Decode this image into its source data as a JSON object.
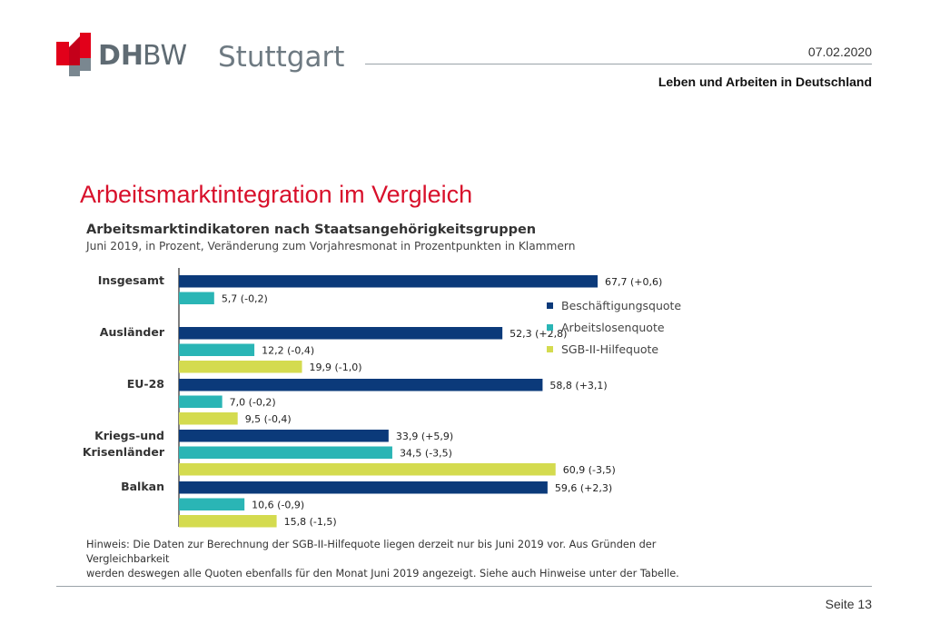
{
  "header": {
    "logo_dh": "DH",
    "logo_bw": "BW",
    "logo_city": "Stuttgart",
    "date": "07.02.2020",
    "subtitle": "Leben und Arbeiten in Deutschland"
  },
  "slide": {
    "title": "Arbeitsmarktintegration im Vergleich"
  },
  "chart_data": {
    "type": "bar",
    "orientation": "horizontal",
    "title": "Arbeitsmarktindikatoren nach Staatsangehörigkeitsgruppen",
    "subtitle": "Juni 2019, in Prozent, Veränderung zum Vorjahresmonat in Prozentpunkten in Klammern",
    "categories": [
      "Insgesamt",
      "Ausländer",
      "EU-28",
      "Kriegs-und Krisenländer",
      "Balkan"
    ],
    "xlim": [
      0,
      70
    ],
    "grid": false,
    "legend_position": "right",
    "series": [
      {
        "name": "Beschäftigungsquote",
        "color": "#0b3a7a",
        "values": [
          67.7,
          52.3,
          58.8,
          33.9,
          59.6
        ],
        "labels": [
          "67,7  (+0,6)",
          "52,3  (+2,8)",
          "58,8  (+3,1)",
          "33,9  (+5,9)",
          "59,6  (+2,3)"
        ]
      },
      {
        "name": "Arbeitslosenquote",
        "color": "#2ab5b5",
        "values": [
          5.7,
          12.2,
          7.0,
          34.5,
          10.6
        ],
        "labels": [
          "5,7  (-0,2)",
          "12,2  (-0,4)",
          "7,0  (-0,2)",
          "34,5  (-3,5)",
          "10,6  (-0,9)"
        ]
      },
      {
        "name": "SGB-II-Hilfequote",
        "color": "#d4db4f",
        "values": [
          null,
          19.9,
          9.5,
          60.9,
          15.8
        ],
        "labels": [
          "",
          "19,9  (-1,0)",
          "9,5  (-0,4)",
          "60,9  (-3,5)",
          "15,8  (-1,5)"
        ]
      }
    ]
  },
  "note": {
    "line1": "Hinweis: Die Daten zur Berechnung der SGB-II-Hilfequote liegen derzeit nur bis Juni 2019 vor. Aus Gründen der Vergleichbarkeit",
    "line2": "werden deswegen alle Quoten ebenfalls für den Monat Juni 2019 angezeigt. Siehe auch Hinweise unter der Tabelle."
  },
  "footer": {
    "page": "Seite 13"
  }
}
